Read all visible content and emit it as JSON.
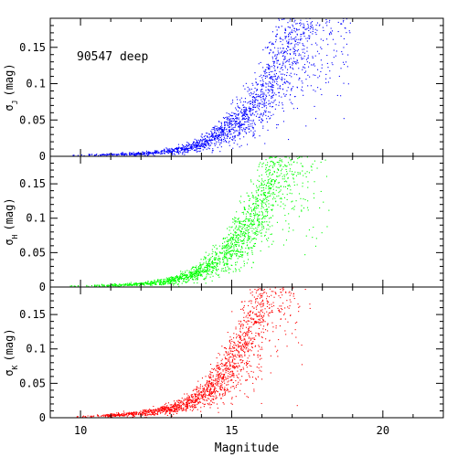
{
  "chart_data": {
    "type": "scatter",
    "annotation": "90547 deep",
    "xlabel": "Magnitude",
    "xlim": [
      9,
      22
    ],
    "xticks": [
      10,
      15,
      20
    ],
    "xtick_labels": [
      "10",
      "15",
      "20"
    ],
    "panels": [
      {
        "band": "J",
        "ylabel": "σ",
        "ylabel_sub": "J",
        "ylabel_unit": "(mag)",
        "color": "#0000ff",
        "ylim": [
          0,
          0.19
        ],
        "yticks": [
          0,
          0.05,
          0.1,
          0.15
        ],
        "ytick_labels": [
          "0",
          "0.05",
          "0.1",
          "0.15"
        ],
        "trend": [
          {
            "mag": 10.0,
            "sigma": 0.002
          },
          {
            "mag": 11.0,
            "sigma": 0.003
          },
          {
            "mag": 12.0,
            "sigma": 0.004
          },
          {
            "mag": 13.0,
            "sigma": 0.008
          },
          {
            "mag": 13.5,
            "sigma": 0.012
          },
          {
            "mag": 14.0,
            "sigma": 0.018
          },
          {
            "mag": 14.5,
            "sigma": 0.028
          },
          {
            "mag": 15.0,
            "sigma": 0.042
          },
          {
            "mag": 15.5,
            "sigma": 0.06
          },
          {
            "mag": 16.0,
            "sigma": 0.085
          },
          {
            "mag": 16.5,
            "sigma": 0.12
          },
          {
            "mag": 17.0,
            "sigma": 0.165
          },
          {
            "mag": 17.3,
            "sigma": 0.19
          }
        ]
      },
      {
        "band": "H",
        "ylabel": "σ",
        "ylabel_sub": "H",
        "ylabel_unit": "(mag)",
        "color": "#00ff00",
        "ylim": [
          0,
          0.19
        ],
        "yticks": [
          0,
          0.05,
          0.1,
          0.15
        ],
        "ytick_labels": [
          "0",
          "0.05",
          "0.1",
          "0.15"
        ],
        "trend": [
          {
            "mag": 10.0,
            "sigma": 0.002
          },
          {
            "mag": 11.0,
            "sigma": 0.003
          },
          {
            "mag": 12.0,
            "sigma": 0.005
          },
          {
            "mag": 13.0,
            "sigma": 0.01
          },
          {
            "mag": 13.5,
            "sigma": 0.016
          },
          {
            "mag": 14.0,
            "sigma": 0.025
          },
          {
            "mag": 14.5,
            "sigma": 0.038
          },
          {
            "mag": 15.0,
            "sigma": 0.058
          },
          {
            "mag": 15.5,
            "sigma": 0.085
          },
          {
            "mag": 16.0,
            "sigma": 0.125
          },
          {
            "mag": 16.3,
            "sigma": 0.155
          },
          {
            "mag": 16.6,
            "sigma": 0.19
          }
        ]
      },
      {
        "band": "K",
        "ylabel": "σ",
        "ylabel_sub": "K",
        "ylabel_unit": "(mag)",
        "color": "#ff0000",
        "ylim": [
          0,
          0.19
        ],
        "yticks": [
          0,
          0.05,
          0.1,
          0.15
        ],
        "ytick_labels": [
          "0",
          "0.05",
          "0.1",
          "0.15"
        ],
        "trend": [
          {
            "mag": 10.0,
            "sigma": 0.002
          },
          {
            "mag": 11.0,
            "sigma": 0.004
          },
          {
            "mag": 12.0,
            "sigma": 0.007
          },
          {
            "mag": 13.0,
            "sigma": 0.014
          },
          {
            "mag": 13.5,
            "sigma": 0.022
          },
          {
            "mag": 14.0,
            "sigma": 0.034
          },
          {
            "mag": 14.5,
            "sigma": 0.052
          },
          {
            "mag": 15.0,
            "sigma": 0.078
          },
          {
            "mag": 15.5,
            "sigma": 0.115
          },
          {
            "mag": 15.8,
            "sigma": 0.145
          },
          {
            "mag": 16.1,
            "sigma": 0.19
          }
        ]
      }
    ]
  }
}
